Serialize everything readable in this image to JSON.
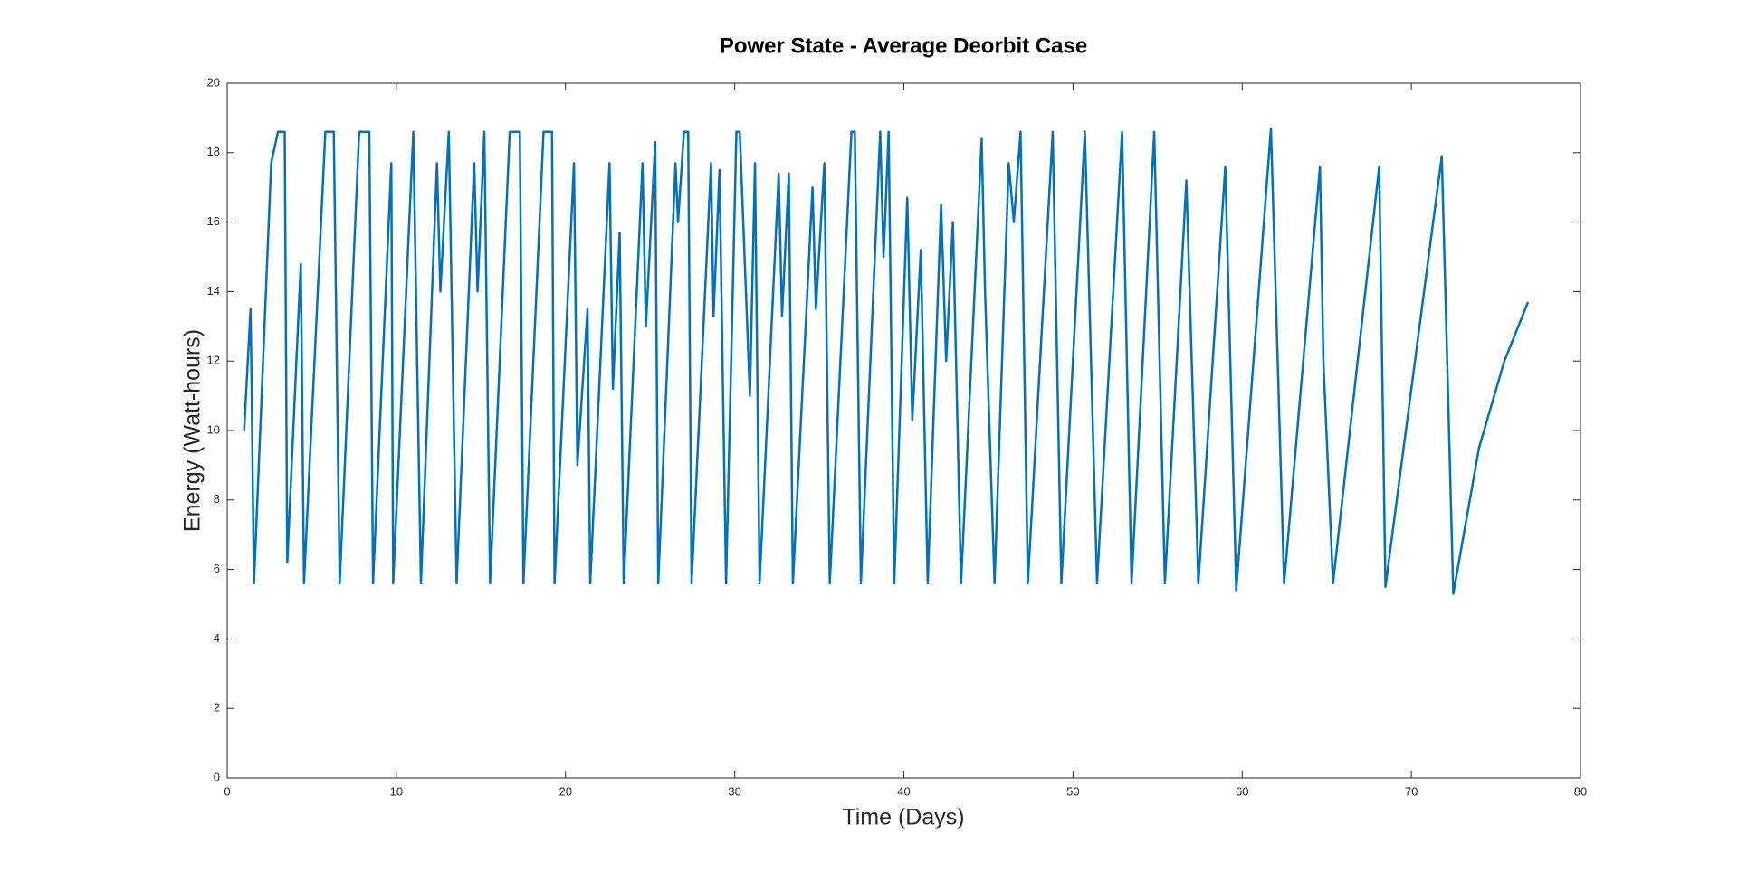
{
  "chart_data": {
    "type": "line",
    "title": "Power State - Average Deorbit Case",
    "xlabel": "Time (Days)",
    "ylabel": "Energy (Watt-hours)",
    "color": "#0072BD",
    "xlim": [
      0,
      80
    ],
    "xticks": [
      0,
      10,
      20,
      30,
      40,
      50,
      60,
      70,
      80
    ],
    "ylim": [
      0,
      20
    ],
    "yticks": [
      0,
      2,
      4,
      6,
      8,
      10,
      12,
      14,
      16,
      18,
      20
    ],
    "grid": false,
    "x": [
      1.0,
      1.38,
      1.45,
      1.58,
      2.6,
      3.0,
      3.4,
      3.55,
      4.35,
      4.54,
      5.8,
      6.3,
      6.65,
      7.8,
      8.4,
      8.62,
      9.7,
      9.81,
      11.0,
      11.45,
      12.4,
      12.6,
      13.1,
      13.56,
      14.6,
      14.8,
      15.2,
      15.54,
      16.7,
      17.3,
      17.51,
      18.7,
      19.2,
      19.35,
      20.5,
      20.7,
      21.3,
      21.46,
      22.6,
      22.8,
      23.2,
      23.44,
      24.55,
      24.75,
      25.3,
      25.48,
      26.5,
      26.65,
      27.0,
      27.25,
      27.45,
      28.6,
      28.75,
      29.1,
      29.49,
      30.1,
      30.3,
      30.9,
      31.2,
      31.47,
      32.6,
      32.8,
      33.2,
      33.44,
      34.6,
      34.8,
      35.3,
      35.62,
      36.9,
      37.1,
      37.46,
      38.6,
      38.8,
      39.1,
      39.43,
      40.2,
      40.5,
      41.0,
      41.41,
      42.2,
      42.5,
      42.9,
      43.38,
      44.6,
      44.8,
      45.36,
      46.2,
      46.5,
      46.9,
      47.33,
      48.8,
      49.31,
      50.7,
      51.42,
      52.9,
      53.46,
      54.8,
      55.43,
      56.7,
      57.41,
      59.0,
      59.65,
      61.7,
      62.48,
      64.6,
      64.8,
      65.37,
      68.1,
      68.47,
      71.8,
      72.48,
      74.0,
      75.5,
      76.9
    ],
    "values": [
      10,
      13.5,
      11,
      5.6,
      17.7,
      18.6,
      18.6,
      6.2,
      14.8,
      5.6,
      18.6,
      18.6,
      5.6,
      18.6,
      18.6,
      5.6,
      17.7,
      5.6,
      18.6,
      5.6,
      17.7,
      14,
      18.6,
      5.6,
      17.7,
      14,
      18.6,
      5.6,
      18.6,
      18.6,
      5.6,
      18.6,
      18.6,
      5.6,
      17.7,
      9,
      13.5,
      5.6,
      17.7,
      11.2,
      15.7,
      5.6,
      17.7,
      13,
      18.3,
      5.6,
      17.7,
      16,
      18.6,
      18.6,
      5.6,
      17.7,
      13.3,
      17.5,
      5.6,
      18.6,
      18.6,
      11,
      17.7,
      5.6,
      17.4,
      13.3,
      17.4,
      5.6,
      17,
      13.5,
      17.7,
      5.6,
      18.6,
      18.6,
      5.6,
      18.6,
      15,
      18.6,
      5.6,
      16.7,
      10.3,
      15.2,
      5.6,
      16.5,
      12,
      16,
      5.6,
      18.4,
      14,
      5.6,
      17.7,
      16,
      18.6,
      5.6,
      18.6,
      5.6,
      18.6,
      5.6,
      18.6,
      5.6,
      18.6,
      5.6,
      17.2,
      5.6,
      17.6,
      5.4,
      18.7,
      5.6,
      17.6,
      12,
      5.6,
      17.6,
      5.5,
      17.9,
      5.3,
      9.5,
      12,
      13.7
    ]
  }
}
